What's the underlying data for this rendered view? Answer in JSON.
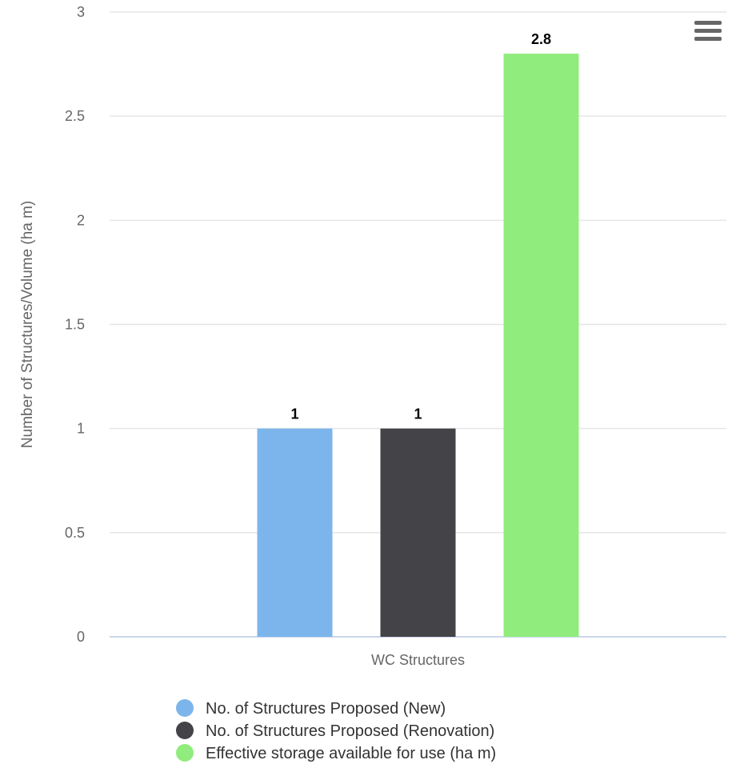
{
  "chart_data": {
    "type": "bar",
    "title": "",
    "categories": [
      "WC Structures"
    ],
    "series": [
      {
        "name": "No. of Structures Proposed (New)",
        "values": [
          1
        ],
        "color": "#7cb5ec",
        "label": "1"
      },
      {
        "name": "No. of Structures Proposed (Renovation)",
        "values": [
          1
        ],
        "color": "#434348",
        "label": "1"
      },
      {
        "name": "Effective storage available for use (ha m)",
        "values": [
          2.8
        ],
        "color": "#90ed7d",
        "label": "2.8"
      }
    ],
    "xlabel": "",
    "ylabel": "Number of Structures/Volume (ha m)",
    "ylim": [
      0,
      3
    ],
    "yticks": [
      "0",
      "0.5",
      "1",
      "1.5",
      "2",
      "2.5",
      "3"
    ],
    "ytick_values": [
      0,
      0.5,
      1,
      1.5,
      2,
      2.5,
      3
    ],
    "grid": true,
    "legend": "bottom-center",
    "gridline_color": "#e6e6e6",
    "axis_line_color": "#ccd6eb"
  },
  "toolbar": {
    "menu_icon": "hamburger-menu-icon"
  }
}
